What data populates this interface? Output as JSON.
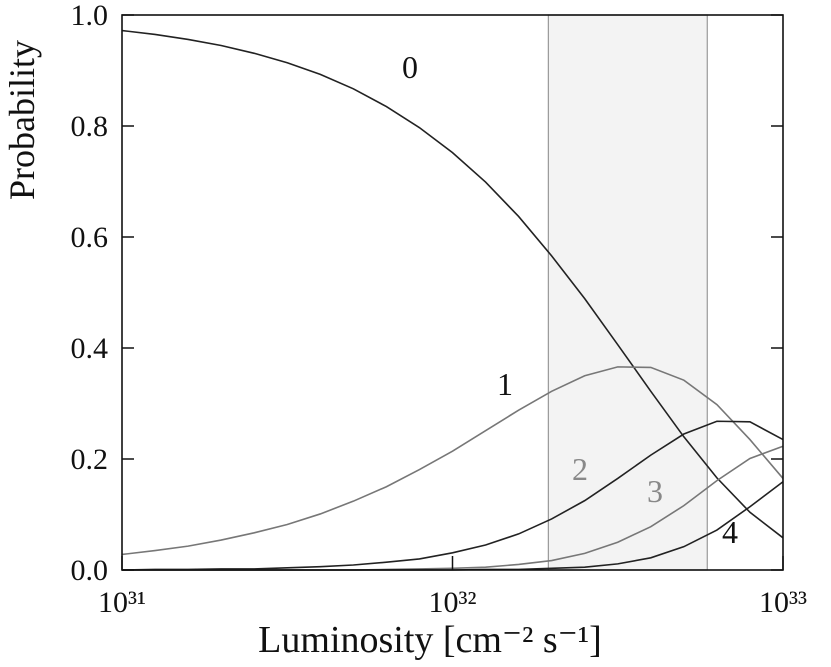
{
  "chart_data": {
    "type": "line",
    "xlabel": "Luminosity [cm⁻² s⁻¹]",
    "ylabel": "Probability",
    "log_x": true,
    "xlim": [
      1e+31,
      1e+33
    ],
    "ylim": [
      0,
      1
    ],
    "xticks": [
      {
        "value": 1e+31,
        "label": "10³¹"
      },
      {
        "value": 1e+32,
        "label": "10³²"
      },
      {
        "value": 1e+33,
        "label": "10³³"
      }
    ],
    "yticks": [
      {
        "value": 0,
        "label": "0.0"
      },
      0.2,
      0.4,
      0.6,
      0.8,
      {
        "value": 1,
        "label": "1.0"
      }
    ],
    "band": [
      1.95e+32,
      5.9e+32
    ],
    "band_color": "#f3f3f3",
    "x": [
      1e+31,
      1.259e+31,
      1.585e+31,
      1.995e+31,
      2.512e+31,
      3.162e+31,
      3.981e+31,
      5.012e+31,
      6.31e+31,
      7.943e+31,
      1e+32,
      1.259e+32,
      1.585e+32,
      1.995e+32,
      2.512e+32,
      3.162e+32,
      3.981e+32,
      5.012e+32,
      6.31e+32,
      7.943e+32,
      1e+33
    ],
    "series": [
      {
        "name": "0",
        "color": "#222222",
        "values": [
          0.972,
          0.965,
          0.956,
          0.945,
          0.931,
          0.914,
          0.893,
          0.867,
          0.835,
          0.797,
          0.752,
          0.699,
          0.637,
          0.566,
          0.489,
          0.406,
          0.322,
          0.24,
          0.166,
          0.104,
          0.058
        ]
      },
      {
        "name": "1",
        "color": "#777777",
        "values": [
          0.028,
          0.035,
          0.043,
          0.054,
          0.067,
          0.082,
          0.101,
          0.124,
          0.15,
          0.181,
          0.214,
          0.251,
          0.288,
          0.322,
          0.35,
          0.366,
          0.365,
          0.342,
          0.298,
          0.235,
          0.165
        ]
      },
      {
        "name": "2",
        "color": "#222222",
        "values": [
          0.0,
          0.001,
          0.001,
          0.002,
          0.002,
          0.004,
          0.006,
          0.009,
          0.014,
          0.02,
          0.031,
          0.045,
          0.065,
          0.092,
          0.125,
          0.165,
          0.207,
          0.245,
          0.268,
          0.267,
          0.235
        ]
      },
      {
        "name": "3",
        "color": "#777777",
        "values": [
          0.0,
          0.0,
          0.0,
          0.0,
          0.0,
          0.0,
          0.0,
          0.0,
          0.001,
          0.002,
          0.003,
          0.005,
          0.01,
          0.017,
          0.03,
          0.05,
          0.078,
          0.116,
          0.161,
          0.201,
          0.223
        ]
      },
      {
        "name": "4",
        "color": "#222222",
        "values": [
          0.0,
          0.0,
          0.0,
          0.0,
          0.0,
          0.0,
          0.0,
          0.0,
          0.0,
          0.0,
          0.0,
          0.001,
          0.001,
          0.003,
          0.005,
          0.011,
          0.022,
          0.042,
          0.072,
          0.114,
          0.159
        ]
      }
    ]
  }
}
